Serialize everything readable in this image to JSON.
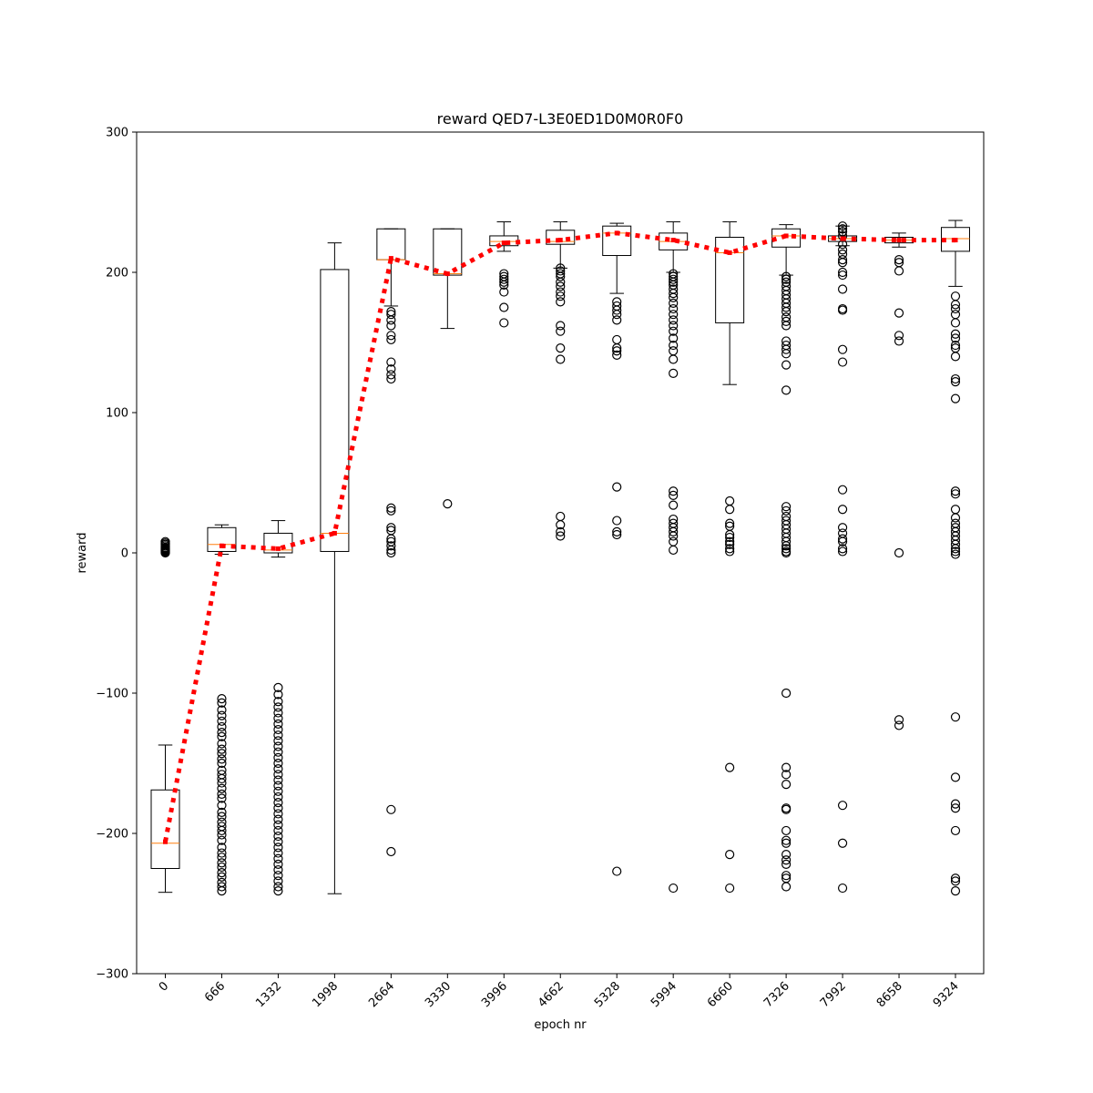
{
  "chart_data": {
    "type": "box",
    "title": "reward QED7-L3E0ED1D0M0R0F0",
    "xlabel": "epoch nr",
    "ylabel": "reward",
    "ylim": [
      -300,
      300
    ],
    "yticks": [
      -300,
      -200,
      -100,
      0,
      100,
      200,
      300
    ],
    "categories": [
      "0",
      "666",
      "1332",
      "1998",
      "2664",
      "3330",
      "3996",
      "4662",
      "5328",
      "5994",
      "6660",
      "7326",
      "7992",
      "8658",
      "9324"
    ],
    "colors": {
      "box": "#000000",
      "median": "#ff7f0e",
      "mean_line": "#ff0000"
    },
    "boxes": [
      {
        "epoch": "0",
        "whislo": -242,
        "q1": -225,
        "med": -207,
        "q3": -169,
        "whishi": -137,
        "fliers": [
          0,
          0.5,
          1,
          1.5,
          2,
          2.5,
          3,
          3.5,
          4,
          5,
          6,
          7,
          8
        ]
      },
      {
        "epoch": "666",
        "whislo": -1,
        "q1": 1,
        "med": 6,
        "q3": 18,
        "whishi": 20,
        "fliers": [
          -104,
          -107,
          -112,
          -116,
          -120,
          -124,
          -128,
          -131,
          -136,
          -140,
          -143,
          -147,
          -150,
          -155,
          -158,
          -161,
          -164,
          -168,
          -172,
          -175,
          -180,
          -185,
          -188,
          -192,
          -195,
          -198,
          -201,
          -205,
          -210,
          -214,
          -217,
          -221,
          -224,
          -228,
          -231,
          -235,
          -238,
          -241
        ]
      },
      {
        "epoch": "1332",
        "whislo": -3,
        "q1": 0,
        "med": 2,
        "q3": 14,
        "whishi": 23,
        "fliers": [
          -96,
          -101,
          -106,
          -110,
          -114,
          -118,
          -122,
          -126,
          -130,
          -134,
          -138,
          -142,
          -146,
          -150,
          -154,
          -158,
          -162,
          -166,
          -170,
          -174,
          -178,
          -182,
          -186,
          -190,
          -194,
          -198,
          -202,
          -206,
          -210,
          -214,
          -218,
          -222,
          -226,
          -230,
          -234,
          -238,
          -241
        ]
      },
      {
        "epoch": "1998",
        "whislo": -243,
        "q1": 1,
        "med": 14,
        "q3": 202,
        "whishi": 221,
        "fliers": []
      },
      {
        "epoch": "2664",
        "whislo": 176,
        "q1": 209,
        "med": 209,
        "q3": 231,
        "whishi": 231,
        "fliers": [
          172,
          170,
          166,
          162,
          155,
          152,
          136,
          131,
          127,
          124,
          32,
          30,
          18,
          16,
          10,
          8,
          5,
          2,
          0,
          -183,
          -213
        ]
      },
      {
        "epoch": "3330",
        "whislo": 160,
        "q1": 198,
        "med": 199,
        "q3": 231,
        "whishi": 231,
        "fliers": [
          35
        ]
      },
      {
        "epoch": "3996",
        "whislo": 215,
        "q1": 219,
        "med": 222,
        "q3": 226,
        "whishi": 236,
        "fliers": [
          199,
          197,
          195,
          193,
          191,
          186,
          175,
          164
        ]
      },
      {
        "epoch": "4662",
        "whislo": 203,
        "q1": 220,
        "med": 222,
        "q3": 230,
        "whishi": 236,
        "fliers": [
          203,
          201,
          199,
          197,
          193,
          190,
          186,
          183,
          179,
          162,
          158,
          146,
          138,
          26,
          20,
          15,
          12
        ]
      },
      {
        "epoch": "5328",
        "whislo": 185,
        "q1": 212,
        "med": 228,
        "q3": 233,
        "whishi": 235,
        "fliers": [
          179,
          176,
          173,
          170,
          166,
          152,
          146,
          144,
          141,
          47,
          23,
          15,
          13,
          -227
        ]
      },
      {
        "epoch": "5994",
        "whislo": 200,
        "q1": 216,
        "med": 222,
        "q3": 228,
        "whishi": 236,
        "fliers": [
          199,
          197,
          195,
          193,
          191,
          188,
          185,
          182,
          178,
          174,
          170,
          166,
          162,
          158,
          153,
          148,
          144,
          138,
          128,
          44,
          41,
          34,
          24,
          21,
          18,
          15,
          12,
          8,
          2,
          -239
        ]
      },
      {
        "epoch": "6660",
        "whislo": 120,
        "q1": 164,
        "med": 214,
        "q3": 225,
        "whishi": 236,
        "fliers": [
          37,
          31,
          21,
          19,
          13,
          11,
          8,
          6,
          3,
          1,
          -153,
          -215,
          -239
        ]
      },
      {
        "epoch": "7326",
        "whislo": 198,
        "q1": 218,
        "med": 226,
        "q3": 231,
        "whishi": 234,
        "fliers": [
          197,
          195,
          193,
          190,
          187,
          184,
          181,
          178,
          175,
          172,
          168,
          165,
          162,
          151,
          148,
          145,
          142,
          134,
          116,
          33,
          30,
          26,
          23,
          20,
          17,
          14,
          11,
          8,
          5,
          3,
          1,
          0,
          -100,
          -153,
          -158,
          -165,
          -182,
          -183,
          -198,
          -205,
          -207,
          -215,
          -219,
          -222,
          -230,
          -232,
          -238
        ]
      },
      {
        "epoch": "7992",
        "whislo": 219,
        "q1": 222,
        "med": 224,
        "q3": 226,
        "whishi": 233,
        "fliers": [
          233,
          231,
          229,
          226,
          220,
          216,
          213,
          209,
          207,
          200,
          198,
          188,
          174,
          173,
          145,
          136,
          45,
          31,
          18,
          14,
          10,
          8,
          3,
          1,
          -180,
          -207,
          -239
        ]
      },
      {
        "epoch": "8658",
        "whislo": 218,
        "q1": 221,
        "med": 223,
        "q3": 225,
        "whishi": 228,
        "fliers": [
          209,
          207,
          201,
          171,
          155,
          151,
          0,
          -119,
          -123
        ]
      },
      {
        "epoch": "9324",
        "whislo": 190,
        "q1": 215,
        "med": 224,
        "q3": 232,
        "whishi": 237,
        "fliers": [
          183,
          177,
          174,
          170,
          164,
          156,
          153,
          148,
          146,
          140,
          124,
          122,
          110,
          44,
          42,
          31,
          25,
          21,
          18,
          15,
          12,
          9,
          6,
          3,
          1,
          -1,
          -117,
          -160,
          -179,
          -182,
          -198,
          -232,
          -234,
          -241
        ]
      }
    ],
    "mean_line": {
      "style": "dotted",
      "x": [
        "0",
        "666",
        "1332",
        "1998",
        "2664",
        "3330",
        "3996",
        "4662",
        "5328",
        "5994",
        "6660",
        "7326",
        "7992",
        "8658",
        "9324"
      ],
      "values": [
        -206,
        5,
        3,
        14,
        210,
        199,
        221,
        223,
        228,
        223,
        214,
        226,
        224,
        223,
        223
      ]
    }
  }
}
